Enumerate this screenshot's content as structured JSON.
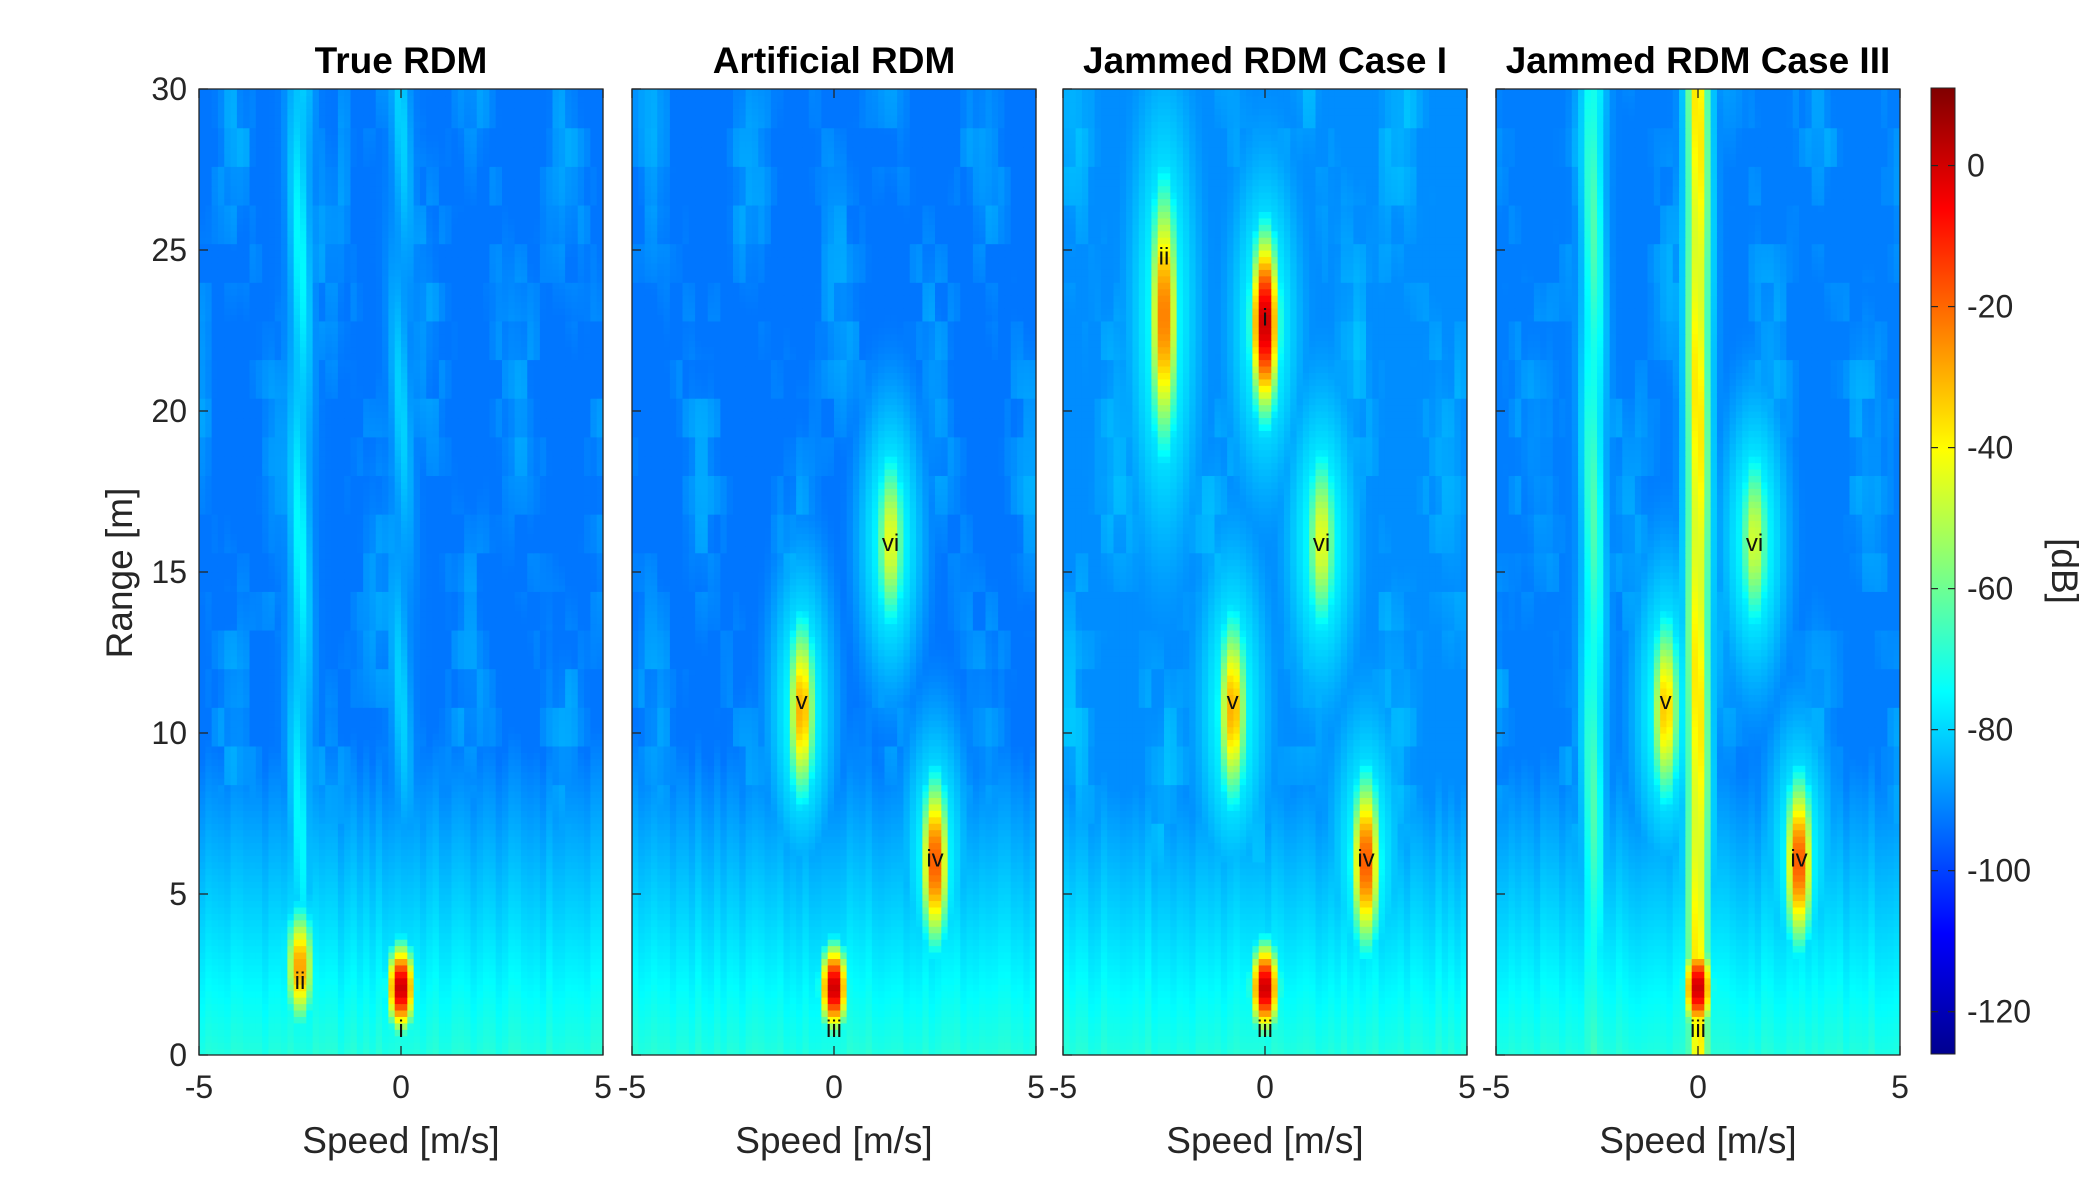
{
  "figure": {
    "shared_ylabel": "Range [m]",
    "colorbar": {
      "label": "[dB]",
      "range": [
        -126,
        11
      ],
      "ticks": [
        0,
        -20,
        -40,
        -60,
        -80,
        -100,
        -120
      ],
      "tick_labels": [
        "0",
        "-20",
        "-40",
        "-60",
        "-80",
        "-100",
        "-120"
      ],
      "colormap": "jet"
    }
  },
  "chart_data": [
    {
      "type": "heatmap",
      "title": "True RDM",
      "xlabel": "Speed [m/s]",
      "ylabel": "Range [m]",
      "xlim": [
        -5,
        5
      ],
      "ylim": [
        0,
        30
      ],
      "xticks": [
        -5,
        0,
        5
      ],
      "yticks": [
        0,
        5,
        10,
        15,
        20,
        25,
        30
      ],
      "background_db": -93,
      "vertical_streaks": [
        {
          "speed": -2.5,
          "db": -78
        },
        {
          "speed": 0,
          "db": -84
        }
      ],
      "targets": [
        {
          "label": "ii",
          "speed": -2.5,
          "range": 2.3,
          "peak_db": -25,
          "range_extent": [
            0,
            5.5
          ]
        },
        {
          "label": "i",
          "speed": 0,
          "range": 0.8,
          "peak_db": 5,
          "range_extent": [
            0,
            4.2
          ]
        }
      ]
    },
    {
      "type": "heatmap",
      "title": "Artificial RDM",
      "xlabel": "Speed [m/s]",
      "xlim": [
        -5,
        5
      ],
      "ylim": [
        0,
        30
      ],
      "xticks": [
        -5,
        0,
        5
      ],
      "background_db": -93,
      "vertical_streaks": [],
      "targets": [
        {
          "label": "vi",
          "speed": 1.4,
          "range": 15.9,
          "peak_db": -42,
          "range_extent": [
            12,
            20
          ]
        },
        {
          "label": "v",
          "speed": -0.8,
          "range": 11,
          "peak_db": -28,
          "range_extent": [
            6.5,
            15
          ]
        },
        {
          "label": "iv",
          "speed": 2.5,
          "range": 6.1,
          "peak_db": -15,
          "range_extent": [
            2,
            10
          ]
        },
        {
          "label": "iii",
          "speed": 0,
          "range": 0.8,
          "peak_db": 5,
          "range_extent": [
            0,
            4.2
          ]
        }
      ]
    },
    {
      "type": "heatmap",
      "title": "Jammed RDM Case I",
      "xlabel": "Speed [m/s]",
      "xlim": [
        -5,
        5
      ],
      "ylim": [
        0,
        30
      ],
      "xticks": [
        -5,
        0,
        5
      ],
      "background_db": -90,
      "vertical_streaks": [],
      "targets": [
        {
          "label": "ii",
          "speed": -2.5,
          "range": 24.8,
          "peak_db": -20,
          "range_extent": [
            17,
            29
          ]
        },
        {
          "label": "i",
          "speed": 0,
          "range": 22.9,
          "peak_db": 5,
          "range_extent": [
            18.5,
            27
          ]
        },
        {
          "label": "vi",
          "speed": 1.4,
          "range": 15.9,
          "peak_db": -42,
          "range_extent": [
            12,
            20
          ]
        },
        {
          "label": "v",
          "speed": -0.8,
          "range": 11,
          "peak_db": -28,
          "range_extent": [
            6.5,
            15
          ]
        },
        {
          "label": "iv",
          "speed": 2.5,
          "range": 6.1,
          "peak_db": -15,
          "range_extent": [
            2,
            10
          ]
        },
        {
          "label": "iii",
          "speed": 0,
          "range": 0.8,
          "peak_db": 5,
          "range_extent": [
            0,
            4.2
          ]
        }
      ]
    },
    {
      "type": "heatmap",
      "title": "Jammed RDM Case III",
      "xlabel": "Speed [m/s]",
      "xlim": [
        -5,
        5
      ],
      "ylim": [
        0,
        30
      ],
      "xticks": [
        -5,
        0,
        5
      ],
      "background_db": -92,
      "vertical_streaks": [
        {
          "speed": 0,
          "db": -38
        },
        {
          "speed": -2.6,
          "db": -68
        }
      ],
      "targets": [
        {
          "label": "vi",
          "speed": 1.4,
          "range": 15.9,
          "peak_db": -45,
          "range_extent": [
            12,
            20
          ]
        },
        {
          "label": "v",
          "speed": -0.8,
          "range": 11,
          "peak_db": -32,
          "range_extent": [
            6.5,
            15
          ]
        },
        {
          "label": "iv",
          "speed": 2.5,
          "range": 6.1,
          "peak_db": -15,
          "range_extent": [
            2,
            10
          ]
        },
        {
          "label": "iii",
          "speed": 0,
          "range": 0.8,
          "peak_db": 5,
          "range_extent": [
            0,
            4.2
          ]
        }
      ]
    }
  ]
}
